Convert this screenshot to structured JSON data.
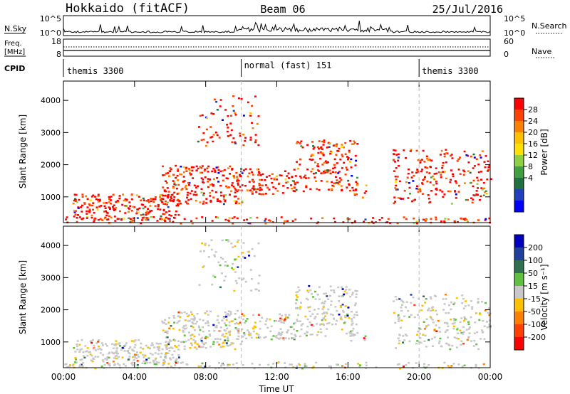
{
  "header": {
    "station": "Hokkaido (fitACF)",
    "beam": "Beam 06",
    "date": "25/Jul/2016"
  },
  "noise_panel": {
    "left_label": "N.Sky",
    "right_label": "N.Search",
    "left_ticks": [
      "10^5",
      "10^0"
    ],
    "right_ticks": [
      "10^5",
      "10^0"
    ]
  },
  "freq_panel": {
    "left_label_1": "Freq.",
    "left_label_2": "[MHz]",
    "right_label": "Nave",
    "left_ticks": [
      "18",
      "8"
    ],
    "right_ticks": [
      "60",
      "0"
    ]
  },
  "cpid_panel": {
    "label": "CPID",
    "segments": [
      {
        "name": "themis 3300",
        "start_hour": 0
      },
      {
        "name": "normal (fast) 151",
        "start_hour": 10
      },
      {
        "name": "themis 3300",
        "start_hour": 20
      }
    ]
  },
  "chart_data": [
    {
      "type": "heatmap",
      "name": "power",
      "ylabel": "Slant Range [km]",
      "xlabel": "",
      "xlim_hours": [
        0,
        24
      ],
      "ylim_km": [
        200,
        4600
      ],
      "yticks": [
        "1000",
        "2000",
        "3000",
        "4000"
      ],
      "colorbar": {
        "label": "Power [dB]",
        "ticks": [
          "28",
          "24",
          "20",
          "16",
          "12",
          "8",
          "4"
        ],
        "colors": [
          "#ff0000",
          "#ff4000",
          "#ff8000",
          "#ffc000",
          "#ffe000",
          "#90d040",
          "#40a040",
          "#207040",
          "#2040c0",
          "#0000ff"
        ]
      }
    },
    {
      "type": "heatmap",
      "name": "velocity",
      "ylabel": "Slant Range [km]",
      "xlabel": "Time UT",
      "xlim_hours": [
        0,
        24
      ],
      "ylim_km": [
        200,
        4600
      ],
      "yticks": [
        "1000",
        "2000",
        "3000",
        "4000"
      ],
      "xticks": [
        "00:00",
        "04:00",
        "08:00",
        "12:00",
        "16:00",
        "20:00",
        "00:00"
      ],
      "colorbar": {
        "label": "Velocity [m s⁻¹]",
        "ticks": [
          "200",
          "100",
          "50",
          "15",
          "-15",
          "-50",
          "-100",
          "-200"
        ],
        "colors": [
          "#0000c0",
          "#2040a0",
          "#307050",
          "#60c040",
          "#c8c8c8",
          "#ffc000",
          "#ff8000",
          "#ff4000",
          "#ff0000"
        ]
      }
    }
  ]
}
